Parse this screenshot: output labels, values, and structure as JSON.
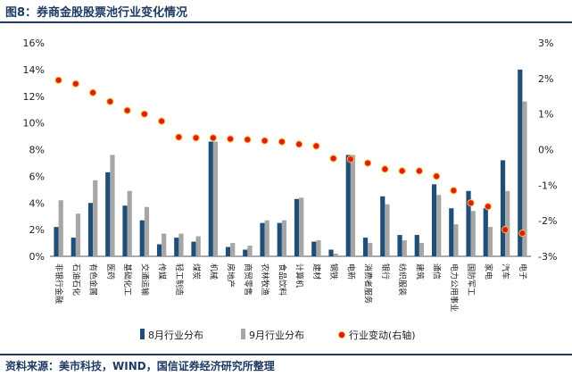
{
  "figure": {
    "title": "图8：券商金股股票池行业变化情况",
    "source": "资料来源：美市科技，WIND，国信证券经济研究所整理"
  },
  "colors": {
    "aug": "#1f4e79",
    "sep": "#a6a6a6",
    "change": "#e31a1c",
    "change_edge": "#f4c430",
    "rule": "#1f3a63"
  },
  "chart_data": {
    "type": "bar",
    "categories": [
      "非银行金融",
      "石油石化",
      "有色金属",
      "医药",
      "基础化工",
      "交通运输",
      "传媒",
      "轻工制造",
      "煤炭",
      "机械",
      "房地产",
      "商贸零售",
      "农林牧渔",
      "食品饮料",
      "计算机",
      "建材",
      "钢铁",
      "电新",
      "消费者服务",
      "银行",
      "纺织服装",
      "建筑",
      "通信",
      "电力公用事业",
      "国防军工",
      "家电",
      "汽车",
      "电子"
    ],
    "series": [
      {
        "name": "8月行业分布",
        "axis": "left",
        "values": [
          2.2,
          1.4,
          4.0,
          6.3,
          3.8,
          2.7,
          0.9,
          1.4,
          1.1,
          8.6,
          0.7,
          0.5,
          2.5,
          2.5,
          4.3,
          1.1,
          0.5,
          7.6,
          1.4,
          4.5,
          1.6,
          1.6,
          5.4,
          3.6,
          4.9,
          3.6,
          7.2,
          14.0
        ]
      },
      {
        "name": "9月行业分布",
        "axis": "left",
        "values": [
          4.2,
          3.2,
          5.7,
          7.6,
          4.9,
          3.7,
          1.7,
          1.7,
          1.5,
          8.6,
          1.0,
          0.8,
          2.7,
          2.7,
          4.4,
          1.2,
          0.2,
          7.6,
          1.0,
          3.9,
          1.2,
          1.0,
          4.6,
          2.4,
          3.4,
          2.2,
          4.9,
          11.6
        ]
      },
      {
        "name": "行业变动(右轴)",
        "axis": "right",
        "values": [
          1.95,
          1.85,
          1.6,
          1.35,
          1.1,
          1.0,
          0.8,
          0.35,
          0.33,
          0.33,
          0.3,
          0.28,
          0.25,
          0.22,
          0.15,
          0.1,
          -0.25,
          -0.27,
          -0.38,
          -0.55,
          -0.6,
          -0.6,
          -0.75,
          -1.15,
          -1.5,
          -1.6,
          -2.25,
          -2.35
        ]
      }
    ],
    "y_left": {
      "min": 0,
      "max": 16,
      "step": 2,
      "unit": "%"
    },
    "y_right": {
      "min": -3,
      "max": 3,
      "step": 1,
      "unit": "%"
    },
    "legend_position": "bottom",
    "grid": false
  }
}
